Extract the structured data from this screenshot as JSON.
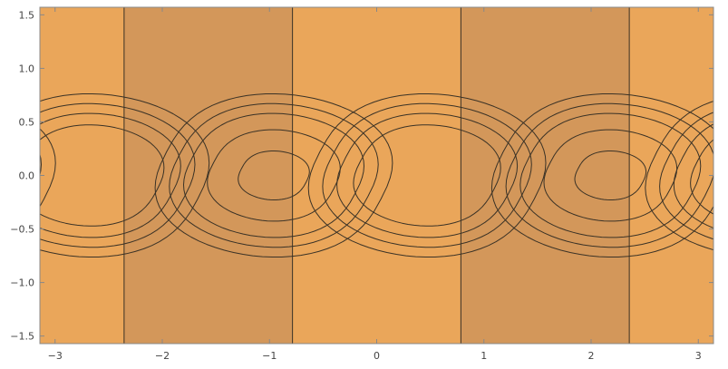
{
  "chart_data": {
    "type": "contour",
    "title": "",
    "xlabel": "",
    "ylabel": "",
    "xlim": [
      -3.14159,
      3.14159
    ],
    "ylim": [
      -1.5708,
      1.5708
    ],
    "x_ticks": [
      -3,
      -2,
      -1,
      0,
      1,
      2,
      3
    ],
    "x_tick_labels": [
      "−3",
      "−2",
      "−1",
      "0",
      "1",
      "2",
      "3"
    ],
    "y_ticks": [
      -1.5,
      -1.0,
      -0.5,
      0.0,
      0.5,
      1.0,
      1.5
    ],
    "y_tick_labels": [
      "−1.5",
      "−1.0",
      "−0.5",
      "0.0",
      "0.5",
      "1.0",
      "1.5"
    ],
    "grid": false,
    "legend": "none",
    "field": {
      "background_bands": [
        {
          "x_from": -3.14159,
          "x_to": -2.3562,
          "level": "light-tan"
        },
        {
          "x_from": -2.3562,
          "x_to": -0.7854,
          "level": "tan"
        },
        {
          "x_from": -0.7854,
          "x_to": 0.7854,
          "level": "light-tan"
        },
        {
          "x_from": 0.7854,
          "x_to": 2.3562,
          "level": "tan"
        },
        {
          "x_from": 2.3562,
          "x_to": 3.14159,
          "level": "light-tan"
        }
      ],
      "maxima_centers": [
        [
          -2.67,
          0.0
        ],
        [
          0.47,
          0.0
        ]
      ],
      "minima_centers": [
        [
          -0.96,
          0.0
        ],
        [
          2.18,
          0.0
        ]
      ],
      "half_width_x": 1.0,
      "half_width_y": 0.72,
      "shear": -0.4
    },
    "levels": [
      {
        "name": "max-4",
        "color": "#fdf2c4",
        "scale": 0.62
      },
      {
        "name": "max-3",
        "color": "#f6d692",
        "scale": 0.76
      },
      {
        "name": "max-2",
        "color": "#f1c27e",
        "scale": 0.88
      },
      {
        "name": "max-1",
        "color": "#efb56e",
        "scale": 1.0
      },
      {
        "name": "min-1",
        "color": "#a4836a",
        "scale": 1.0
      },
      {
        "name": "min-2",
        "color": "#756f89",
        "scale": 0.88
      },
      {
        "name": "min-3",
        "color": "#5565ad",
        "scale": 0.76
      },
      {
        "name": "min-4",
        "color": "#3f66bc",
        "scale": 0.56
      },
      {
        "name": "min-5",
        "color": "#25508d",
        "scale": 0.3
      }
    ],
    "band_colors": {
      "light-tan": "#eaa65a",
      "tan": "#d3975a"
    }
  }
}
